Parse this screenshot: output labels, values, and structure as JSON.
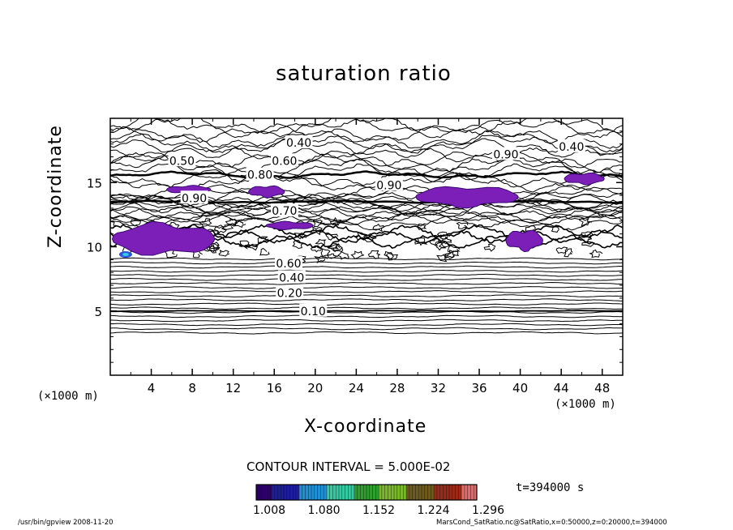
{
  "chart_data": {
    "type": "contour",
    "title": "saturation ratio",
    "xlabel": "X-coordinate",
    "ylabel": "Z-coordinate",
    "x_unit_left": "(×1000 m)",
    "x_unit_right": "(×1000 m)",
    "xlim": [
      0,
      50
    ],
    "ylim": [
      0,
      20
    ],
    "x_ticks": [
      4,
      8,
      12,
      16,
      20,
      24,
      28,
      32,
      36,
      40,
      44,
      48
    ],
    "y_ticks": [
      5,
      10,
      15
    ],
    "contour_interval_label": "CONTOUR INTERVAL = 5.000E-02",
    "time_label": "t=394000 s",
    "colorbar": {
      "tick_labels": [
        "1.008",
        "1.080",
        "1.152",
        "1.224",
        "1.296"
      ],
      "range": [
        1.008,
        1.296
      ],
      "colors": [
        "#2a0066",
        "#1c1c9e",
        "#1f8fd6",
        "#36c8a0",
        "#2e9e2e",
        "#7ab82a",
        "#6d5a1e",
        "#9a2a18",
        "#e06a6a"
      ]
    },
    "contour_labels": [
      {
        "value": "0.10",
        "x": 19.8,
        "z": 5.0
      },
      {
        "value": "0.20",
        "x": 17.5,
        "z": 6.4
      },
      {
        "value": "0.40",
        "x": 17.7,
        "z": 7.6
      },
      {
        "value": "0.60",
        "x": 17.4,
        "z": 8.7
      },
      {
        "value": "0.40",
        "x": 18.4,
        "z": 18.1
      },
      {
        "value": "0.50",
        "x": 7.0,
        "z": 16.7
      },
      {
        "value": "0.60",
        "x": 17.0,
        "z": 16.7
      },
      {
        "value": "0.80",
        "x": 14.6,
        "z": 15.6
      },
      {
        "value": "0.90",
        "x": 8.2,
        "z": 13.8
      },
      {
        "value": "0.70",
        "x": 17.0,
        "z": 12.8
      },
      {
        "value": "0.90",
        "x": 27.2,
        "z": 14.8
      },
      {
        "value": "0.90",
        "x": 38.6,
        "z": 17.2
      },
      {
        "value": "0.40",
        "x": 45.0,
        "z": 17.8
      }
    ],
    "supersaturated_regions": [
      {
        "x": [
          0.2,
          10.2
        ],
        "z": [
          9.2,
          12.0
        ]
      },
      {
        "x": [
          5.5,
          9.8
        ],
        "z": [
          14.1,
          14.8
        ]
      },
      {
        "x": [
          13.5,
          17.0
        ],
        "z": [
          13.8,
          14.8
        ]
      },
      {
        "x": [
          15.2,
          19.8
        ],
        "z": [
          11.3,
          12.0
        ]
      },
      {
        "x": [
          29.8,
          39.8
        ],
        "z": [
          13.0,
          14.8
        ]
      },
      {
        "x": [
          38.6,
          42.2
        ],
        "z": [
          9.6,
          11.4
        ]
      },
      {
        "x": [
          44.3,
          48.2
        ],
        "z": [
          14.8,
          15.8
        ]
      }
    ]
  },
  "footer_left": "/usr/bin/gpview  2008-11-20",
  "footer_right": "MarsCond_SatRatio.nc@SatRatio,x=0:50000,z=0:20000,t=394000"
}
